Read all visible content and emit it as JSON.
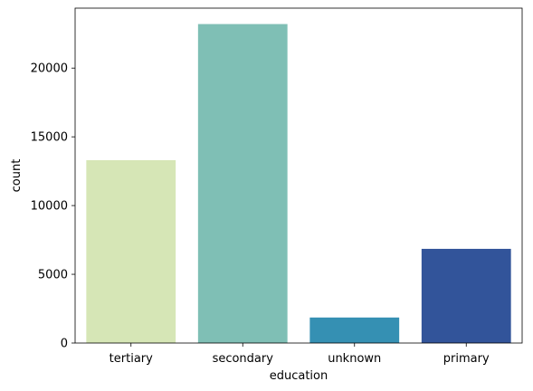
{
  "chart_data": {
    "type": "bar",
    "categories": [
      "tertiary",
      "secondary",
      "unknown",
      "primary"
    ],
    "values": [
      13301,
      23202,
      1857,
      6851
    ],
    "colors": [
      "#d6e6b6",
      "#7fbfb5",
      "#3590b3",
      "#32549a"
    ],
    "xlabel": "education",
    "ylabel": "count",
    "ylim": [
      0,
      24360
    ],
    "yticks": [
      0,
      5000,
      10000,
      15000,
      20000
    ],
    "grid": false,
    "legend": "none"
  }
}
